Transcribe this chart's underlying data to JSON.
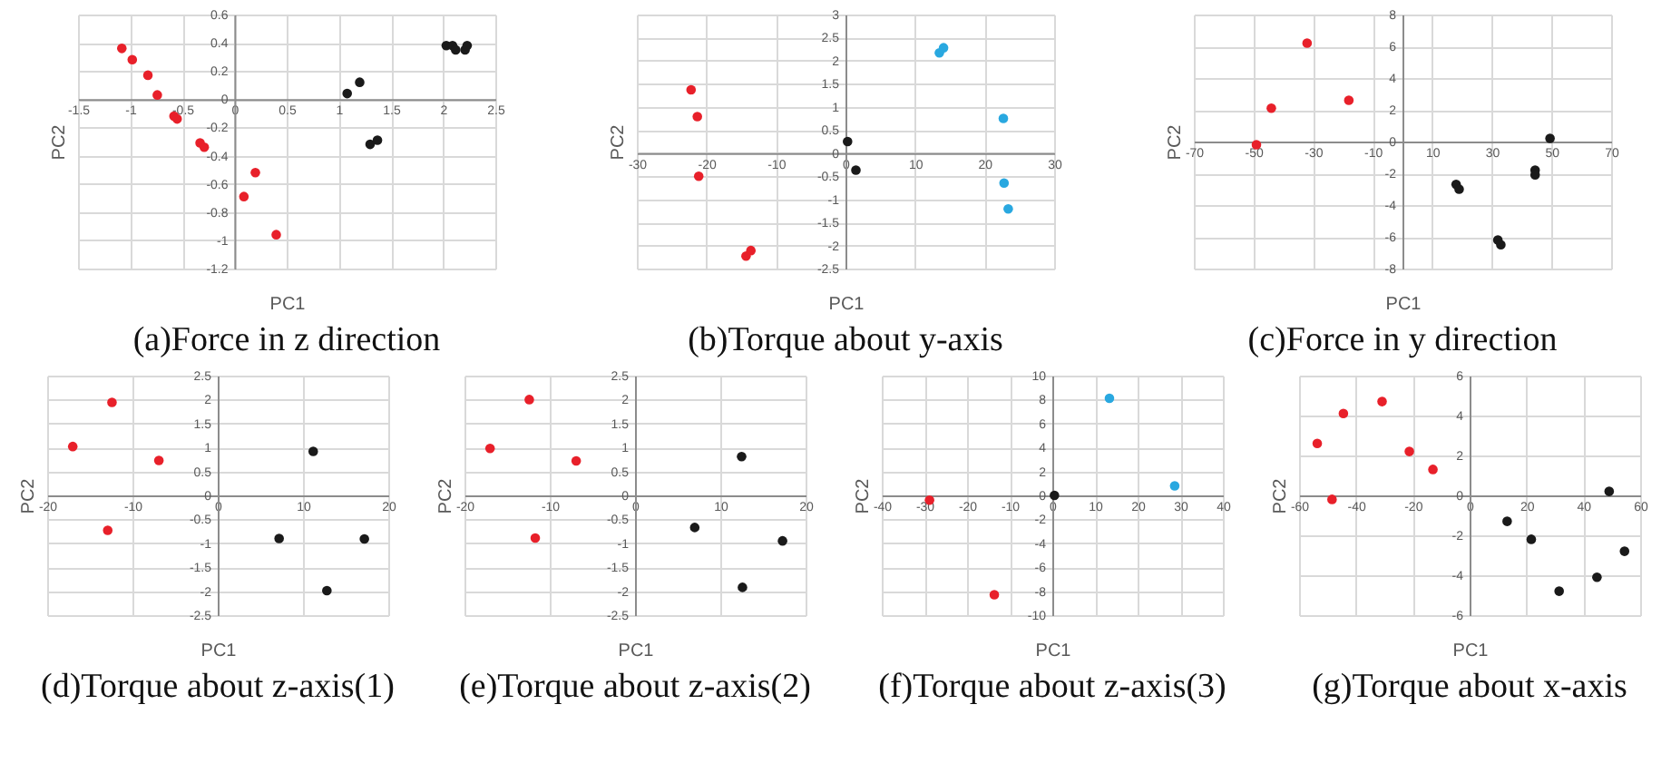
{
  "chart_data": [
    {
      "type": "scatter",
      "title": "(a)Force in z direction",
      "xlabel": "PC1",
      "ylabel": "PC2",
      "xlim": [
        -1.5,
        2.5
      ],
      "ylim": [
        -1.2,
        0.6
      ],
      "xticks": [
        -1.5,
        -1,
        -0.5,
        0,
        0.5,
        1,
        1.5,
        2,
        2.5
      ],
      "yticks": [
        -1.2,
        -1,
        -0.8,
        -0.6,
        -0.4,
        -0.2,
        0,
        0.2,
        0.4,
        0.6
      ],
      "grid": true,
      "marker": "circle",
      "series": [
        {
          "color": "#e8202a",
          "x": [
            -1.08,
            -0.98,
            -0.83,
            -0.74,
            -0.58,
            -0.55,
            -0.33,
            -0.29,
            0.2,
            0.09,
            0.4
          ],
          "values": [
            0.36,
            0.28,
            0.17,
            0.03,
            -0.12,
            -0.14,
            -0.31,
            -0.34,
            -0.52,
            -0.69,
            -0.96
          ]
        },
        {
          "color": "#1a1a1a",
          "x": [
            1.08,
            1.2,
            1.3,
            1.37,
            2.03,
            2.09,
            2.12,
            2.21,
            2.23
          ],
          "values": [
            0.04,
            0.12,
            -0.32,
            -0.29,
            0.38,
            0.38,
            0.35,
            0.35,
            0.38
          ]
        }
      ]
    },
    {
      "type": "scatter",
      "title": "(b)Torque about y-axis",
      "xlabel": "PC1",
      "ylabel": "PC2",
      "xlim": [
        -30,
        30
      ],
      "ylim": [
        -2.5,
        3
      ],
      "xticks": [
        -30,
        -20,
        -10,
        0,
        10,
        20,
        30
      ],
      "yticks": [
        -2.5,
        -2,
        -1.5,
        -1,
        -0.5,
        0,
        0.5,
        1,
        1.5,
        2,
        2.5,
        3
      ],
      "grid": true,
      "marker": "circle",
      "series": [
        {
          "color": "#e8202a",
          "x": [
            -22.2,
            -21.3,
            -21.1,
            -14.3,
            -13.6
          ],
          "values": [
            1.37,
            0.79,
            -0.5,
            -2.23,
            -2.11
          ]
        },
        {
          "color": "#29a8e0",
          "x": [
            13.5,
            14.1,
            22.7,
            22.8,
            23.4
          ],
          "values": [
            2.17,
            2.28,
            0.75,
            -0.65,
            -1.21
          ]
        },
        {
          "color": "#1a1a1a",
          "x": [
            0.3,
            1.5
          ],
          "values": [
            0.25,
            -0.37
          ]
        }
      ]
    },
    {
      "type": "scatter",
      "title": "(c)Force in y direction",
      "xlabel": "PC1",
      "ylabel": "PC2",
      "xlim": [
        -70,
        70
      ],
      "ylim": [
        -8,
        8
      ],
      "xticks": [
        -70,
        -50,
        -30,
        -10,
        10,
        30,
        50,
        70
      ],
      "yticks": [
        -8,
        -6,
        -4,
        -2,
        0,
        2,
        4,
        6,
        8
      ],
      "grid": true,
      "marker": "circle",
      "series": [
        {
          "color": "#e8202a",
          "x": [
            -49,
            -44,
            -32,
            -18
          ],
          "values": [
            -0.2,
            2.1,
            6.2,
            2.6
          ]
        },
        {
          "color": "#1a1a1a",
          "x": [
            18,
            19,
            32,
            33,
            44.5,
            44.5,
            49.5
          ],
          "values": [
            -2.7,
            -3,
            -6.2,
            -6.5,
            -1.8,
            -2.1,
            0.2
          ]
        }
      ]
    },
    {
      "type": "scatter",
      "title": "(d)Torque about z-axis(1)",
      "xlabel": "PC1",
      "ylabel": "PC2",
      "xlim": [
        -20,
        20
      ],
      "ylim": [
        -2.5,
        2.5
      ],
      "xticks": [
        -20,
        -10,
        0,
        10,
        20
      ],
      "yticks": [
        -2.5,
        -2,
        -1.5,
        -1,
        -0.5,
        0,
        0.5,
        1,
        1.5,
        2,
        2.5
      ],
      "grid": true,
      "marker": "circle",
      "series": [
        {
          "color": "#e8202a",
          "x": [
            -12.4,
            -17.0,
            -6.9,
            -12.9
          ],
          "values": [
            1.94,
            1.02,
            0.73,
            -0.73
          ]
        },
        {
          "color": "#1a1a1a",
          "x": [
            11.2,
            7.2,
            17.2,
            12.8
          ],
          "values": [
            0.92,
            -0.9,
            -0.91,
            -1.99
          ]
        }
      ]
    },
    {
      "type": "scatter",
      "title": "(e)Torque about z-axis(2)",
      "xlabel": "PC1",
      "ylabel": "PC2",
      "xlim": [
        -20,
        20
      ],
      "ylim": [
        -2.5,
        2.5
      ],
      "xticks": [
        -20,
        -10,
        0,
        10,
        20
      ],
      "yticks": [
        -2.5,
        -2,
        -1.5,
        -1,
        -0.5,
        0,
        0.5,
        1,
        1.5,
        2,
        2.5
      ],
      "grid": true,
      "marker": "circle",
      "series": [
        {
          "color": "#e8202a",
          "x": [
            -12.4,
            -17.0,
            -6.9,
            -11.7
          ],
          "values": [
            2.0,
            0.98,
            0.72,
            -0.89
          ]
        },
        {
          "color": "#1a1a1a",
          "x": [
            12.5,
            7.0,
            17.3,
            12.6
          ],
          "values": [
            0.81,
            -0.67,
            -0.95,
            -1.92
          ]
        }
      ]
    },
    {
      "type": "scatter",
      "title": "(f)Torque about z-axis(3)",
      "xlabel": "PC1",
      "ylabel": "PC2",
      "xlim": [
        -40,
        40
      ],
      "ylim": [
        -10,
        10
      ],
      "xticks": [
        -40,
        -30,
        -20,
        -10,
        0,
        10,
        20,
        30,
        40
      ],
      "yticks": [
        -10,
        -8,
        -6,
        -4,
        -2,
        0,
        2,
        4,
        6,
        8,
        10
      ],
      "grid": true,
      "marker": "circle",
      "series": [
        {
          "color": "#e8202a",
          "x": [
            -28.8,
            -13.6
          ],
          "values": [
            -0.4,
            -8.3
          ]
        },
        {
          "color": "#29a8e0",
          "x": [
            13.4,
            28.7
          ],
          "values": [
            8.1,
            0.8
          ]
        },
        {
          "color": "#1a1a1a",
          "x": [
            0.5
          ],
          "values": [
            0
          ]
        }
      ]
    },
    {
      "type": "scatter",
      "title": "(g)Torque about x-axis",
      "xlabel": "PC1",
      "ylabel": "PC2",
      "xlim": [
        -60,
        60
      ],
      "ylim": [
        -6,
        6
      ],
      "xticks": [
        -60,
        -40,
        -20,
        0,
        20,
        40,
        60
      ],
      "yticks": [
        -6,
        -4,
        -2,
        0,
        2,
        4,
        6
      ],
      "grid": true,
      "marker": "circle",
      "series": [
        {
          "color": "#e8202a",
          "x": [
            -53.6,
            -44.4,
            -30.8,
            -48.4,
            -21.2,
            -12.9
          ],
          "values": [
            2.6,
            4.1,
            4.7,
            -0.2,
            2.2,
            1.3
          ]
        },
        {
          "color": "#1a1a1a",
          "x": [
            13.2,
            21.7,
            31.5,
            44.8,
            49.1,
            54.5
          ],
          "values": [
            -1.3,
            -2.2,
            -4.8,
            -4.1,
            0.2,
            -2.8
          ]
        }
      ]
    }
  ]
}
